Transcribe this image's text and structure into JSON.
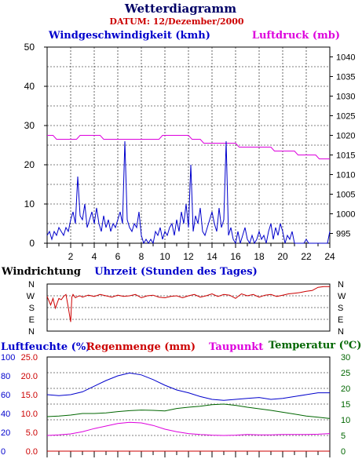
{
  "header": {
    "title": "Wetterdiagramm",
    "date_label": "DATUM: 12/Dezember/2000"
  },
  "chart_data": [
    {
      "type": "line",
      "title": "",
      "xlabel": "Uhrzeit (Stunden des Tages)",
      "x_ticks": [
        2,
        4,
        6,
        8,
        10,
        12,
        14,
        16,
        18,
        20,
        22,
        24
      ],
      "xlim": [
        0,
        24
      ],
      "grid": true,
      "series": [
        {
          "name": "Windgeschwindigkeit (kmh)",
          "axis": "left",
          "color": "#0000cc",
          "ylim": [
            0,
            50
          ],
          "y_ticks": [
            0,
            10,
            20,
            30,
            40,
            50
          ],
          "x": [
            0.0,
            0.2,
            0.4,
            0.6,
            0.8,
            1.0,
            1.2,
            1.4,
            1.6,
            1.8,
            2.0,
            2.2,
            2.4,
            2.6,
            2.8,
            3.0,
            3.2,
            3.4,
            3.6,
            3.8,
            4.0,
            4.2,
            4.4,
            4.6,
            4.8,
            5.0,
            5.2,
            5.4,
            5.6,
            5.8,
            6.0,
            6.2,
            6.4,
            6.6,
            6.8,
            7.0,
            7.2,
            7.4,
            7.6,
            7.8,
            8.0,
            8.2,
            8.4,
            8.6,
            8.8,
            9.0,
            9.2,
            9.4,
            9.6,
            9.8,
            10.0,
            10.2,
            10.4,
            10.6,
            10.8,
            11.0,
            11.2,
            11.4,
            11.6,
            11.8,
            12.0,
            12.2,
            12.4,
            12.6,
            12.8,
            13.0,
            13.2,
            13.4,
            13.6,
            13.8,
            14.0,
            14.2,
            14.4,
            14.6,
            14.8,
            15.0,
            15.2,
            15.4,
            15.6,
            15.8,
            16.0,
            16.2,
            16.4,
            16.6,
            16.8,
            17.0,
            17.2,
            17.4,
            17.6,
            17.8,
            18.0,
            18.2,
            18.4,
            18.6,
            18.8,
            19.0,
            19.2,
            19.4,
            19.6,
            19.8,
            20.0,
            20.2,
            20.4,
            20.6,
            20.8,
            21.0,
            21.2,
            21.4,
            21.6,
            21.8,
            22.0,
            22.2,
            22.4,
            22.6,
            22.8,
            23.0,
            23.2,
            23.4,
            23.6,
            23.8,
            24.0
          ],
          "values": [
            2,
            3,
            1,
            3,
            2,
            4,
            3,
            2,
            4,
            3,
            6,
            8,
            5,
            17,
            7,
            6,
            10,
            4,
            6,
            8,
            5,
            9,
            5,
            3,
            7,
            4,
            6,
            3,
            5,
            4,
            6,
            8,
            5,
            26,
            6,
            4,
            3,
            5,
            4,
            8,
            2,
            0,
            1,
            0,
            1,
            0,
            3,
            2,
            4,
            1,
            3,
            2,
            4,
            5,
            2,
            6,
            3,
            8,
            5,
            10,
            4,
            20,
            3,
            7,
            5,
            9,
            3,
            2,
            4,
            6,
            8,
            5,
            3,
            9,
            4,
            6,
            26,
            2,
            4,
            1,
            0,
            3,
            0,
            2,
            4,
            1,
            0,
            2,
            0,
            1,
            3,
            1,
            2,
            0,
            3,
            5,
            1,
            4,
            2,
            5,
            3,
            0,
            2,
            1,
            3,
            0,
            0,
            0,
            0,
            0,
            1,
            0,
            0,
            0,
            0,
            0,
            0,
            0,
            0,
            0,
            3
          ]
        },
        {
          "name": "Luftdruck (mb)",
          "axis": "right",
          "color": "#dd00dd",
          "ylim": [
            992.5,
            1042.5
          ],
          "y_ticks": [
            995,
            1000,
            1005,
            1010,
            1015,
            1020,
            1025,
            1030,
            1035,
            1040
          ],
          "x": [
            0,
            0.5,
            0.8,
            2.5,
            2.8,
            4.5,
            4.8,
            9.5,
            9.8,
            12.0,
            12.3,
            13.0,
            13.3,
            16.0,
            16.3,
            19.0,
            19.3,
            21.0,
            21.3,
            22.8,
            23.1,
            24
          ],
          "values": [
            1020,
            1020,
            1019,
            1019,
            1020,
            1020,
            1019,
            1019,
            1020,
            1020,
            1019,
            1019,
            1018,
            1018,
            1017,
            1017,
            1016,
            1016,
            1015,
            1015,
            1014,
            1014
          ]
        }
      ]
    },
    {
      "type": "line",
      "title": "Windrichtung",
      "xlim": [
        0,
        24
      ],
      "y_categories": [
        "N",
        "W",
        "S",
        "E",
        "N"
      ],
      "grid": true,
      "series": [
        {
          "name": "Windrichtung",
          "color": "#cc0000",
          "values_unit": "degrees (0=N,90=E,180=S,270=W,360=N)",
          "x": [
            0.0,
            0.3,
            0.5,
            0.7,
            1.0,
            1.2,
            1.4,
            1.6,
            1.8,
            2.0,
            2.1,
            2.2,
            2.4,
            2.6,
            2.8,
            3.0,
            3.5,
            4.0,
            4.5,
            5.0,
            5.5,
            6.0,
            6.5,
            7.0,
            7.5,
            8.0,
            8.5,
            9.0,
            9.5,
            10.0,
            10.5,
            11.0,
            11.5,
            12.0,
            12.5,
            13.0,
            13.5,
            14.0,
            14.5,
            15.0,
            15.5,
            16.0,
            16.5,
            17.0,
            17.5,
            18.0,
            18.5,
            19.0,
            19.5,
            20.0,
            20.5,
            21.0,
            21.5,
            22.0,
            22.5,
            23.0,
            23.5,
            24.0
          ],
          "values": [
            265,
            200,
            250,
            175,
            250,
            240,
            265,
            280,
            180,
            70,
            260,
            280,
            255,
            265,
            270,
            260,
            275,
            265,
            280,
            270,
            260,
            275,
            265,
            270,
            280,
            255,
            270,
            275,
            260,
            255,
            265,
            270,
            255,
            270,
            280,
            260,
            270,
            285,
            265,
            280,
            275,
            250,
            285,
            270,
            280,
            260,
            275,
            280,
            265,
            275,
            285,
            290,
            295,
            305,
            310,
            335,
            340,
            340
          ]
        }
      ]
    },
    {
      "type": "line",
      "xlim": [
        0,
        24
      ],
      "grid": true,
      "series": [
        {
          "name": "Luftfeuchte (%)",
          "color": "#0000cc",
          "ylim": [
            0,
            100
          ],
          "y_ticks": [
            0,
            20,
            40,
            60,
            80,
            100
          ],
          "x": [
            0,
            1,
            2,
            3,
            4,
            5,
            6,
            7,
            8,
            9,
            10,
            11,
            12,
            13,
            14,
            15,
            16,
            17,
            18,
            19,
            20,
            21,
            22,
            23,
            24
          ],
          "values": [
            60,
            59,
            60,
            63,
            69,
            75,
            80,
            83,
            81,
            76,
            70,
            65,
            62,
            58,
            55,
            54,
            55,
            56,
            57,
            55,
            56,
            58,
            60,
            62,
            62
          ]
        },
        {
          "name": "Regenmenge (mm)",
          "color": "#cc0000",
          "ylim": [
            0.0,
            25.0
          ],
          "y_ticks": [
            0.0,
            5.0,
            10.0,
            15.0,
            20.0,
            25.0
          ],
          "x": [
            0,
            24
          ],
          "values": [
            0,
            0
          ]
        },
        {
          "name": "Taupunkt",
          "color": "#dd00dd",
          "ylim": [
            0,
            30
          ],
          "x": [
            0,
            1,
            2,
            3,
            4,
            5,
            6,
            7,
            8,
            9,
            10,
            11,
            12,
            13,
            14,
            15,
            16,
            17,
            18,
            19,
            20,
            21,
            22,
            23,
            24
          ],
          "values": [
            5.0,
            5.2,
            5.5,
            6.2,
            7.2,
            8.0,
            8.8,
            9.2,
            9.0,
            8.2,
            7.0,
            6.2,
            5.6,
            5.3,
            5.1,
            5.0,
            5.1,
            5.3,
            5.2,
            5.2,
            5.3,
            5.3,
            5.3,
            5.4,
            5.6
          ]
        },
        {
          "name": "Temperatur (°C)",
          "color": "#006600",
          "ylim": [
            0,
            30
          ],
          "y_ticks": [
            0,
            5,
            10,
            15,
            20,
            25,
            30
          ],
          "x": [
            0,
            1,
            2,
            3,
            4,
            5,
            6,
            7,
            8,
            9,
            10,
            11,
            12,
            13,
            14,
            15,
            16,
            17,
            18,
            19,
            20,
            21,
            22,
            23,
            24
          ],
          "values": [
            11.0,
            11.2,
            11.5,
            12.0,
            12.0,
            12.2,
            12.6,
            12.9,
            13.1,
            13.0,
            12.8,
            13.6,
            14.0,
            14.3,
            14.8,
            15.0,
            14.6,
            14.0,
            13.5,
            13.0,
            12.4,
            11.8,
            11.2,
            10.8,
            10.4
          ]
        }
      ]
    }
  ],
  "labels": {
    "wind_speed": "Windgeschwindigkeit (kmh)",
    "pressure": "Luftdruck (mb)",
    "wind_dir": "Windrichtung",
    "time_axis": "Uhrzeit (Stunden des Tages)",
    "humidity": "Luftfeuchte (%)",
    "rain": "Regenmenge (mm)",
    "dewpoint": "Taupunkt",
    "temperature_prefix": "Temperatur (",
    "temperature_deg": "o",
    "temperature_suffix": "C)"
  },
  "colors": {
    "title": "#000066",
    "date": "#cc0000",
    "wind": "#0000cc",
    "pressure": "#dd00dd",
    "direction": "#cc0000",
    "humidity": "#0000cc",
    "rain": "#cc0000",
    "dewpoint": "#dd00dd",
    "temperature": "#006600"
  }
}
